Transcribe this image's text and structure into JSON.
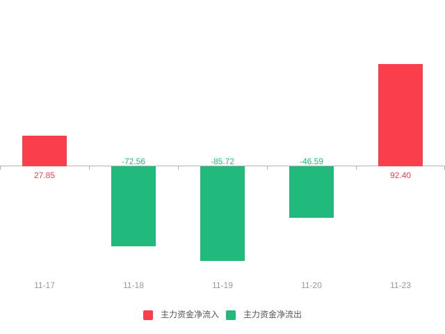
{
  "chart_data": {
    "type": "bar",
    "title": "",
    "xlabel": "",
    "ylabel": "",
    "categories": [
      "11-17",
      "11-18",
      "11-19",
      "11-20",
      "11-23"
    ],
    "values": [
      27.85,
      -72.56,
      -85.72,
      -46.59,
      92.4
    ],
    "value_labels": [
      "27.85",
      "-72.56",
      "-85.72",
      "-46.59",
      "92.40"
    ],
    "series": [
      {
        "name": "主力资金净流入",
        "role": "positive",
        "values": [
          27.85,
          null,
          null,
          null,
          92.4
        ]
      },
      {
        "name": "主力资金净流出",
        "role": "negative",
        "values": [
          null,
          -72.56,
          -85.72,
          -46.59,
          null
        ]
      }
    ],
    "legend": [
      {
        "label": "主力资金净流入",
        "color": "#f93e4c"
      },
      {
        "label": "主力资金净流出",
        "color": "#22ba7c"
      }
    ],
    "colors": {
      "positive": "#f93e4c",
      "negative": "#22ba7c",
      "axis": "#b3b3b3",
      "x_tick_label": "#999999",
      "legend_text": "#555555",
      "background": "#ffffff"
    },
    "layout_hints": {
      "legend_position": "bottom",
      "grid": false,
      "y_axis_labels_shown": false,
      "ylim_estimate": [
        -150,
        150
      ],
      "value_label_placement": "positive below axis, negative above axis"
    }
  }
}
